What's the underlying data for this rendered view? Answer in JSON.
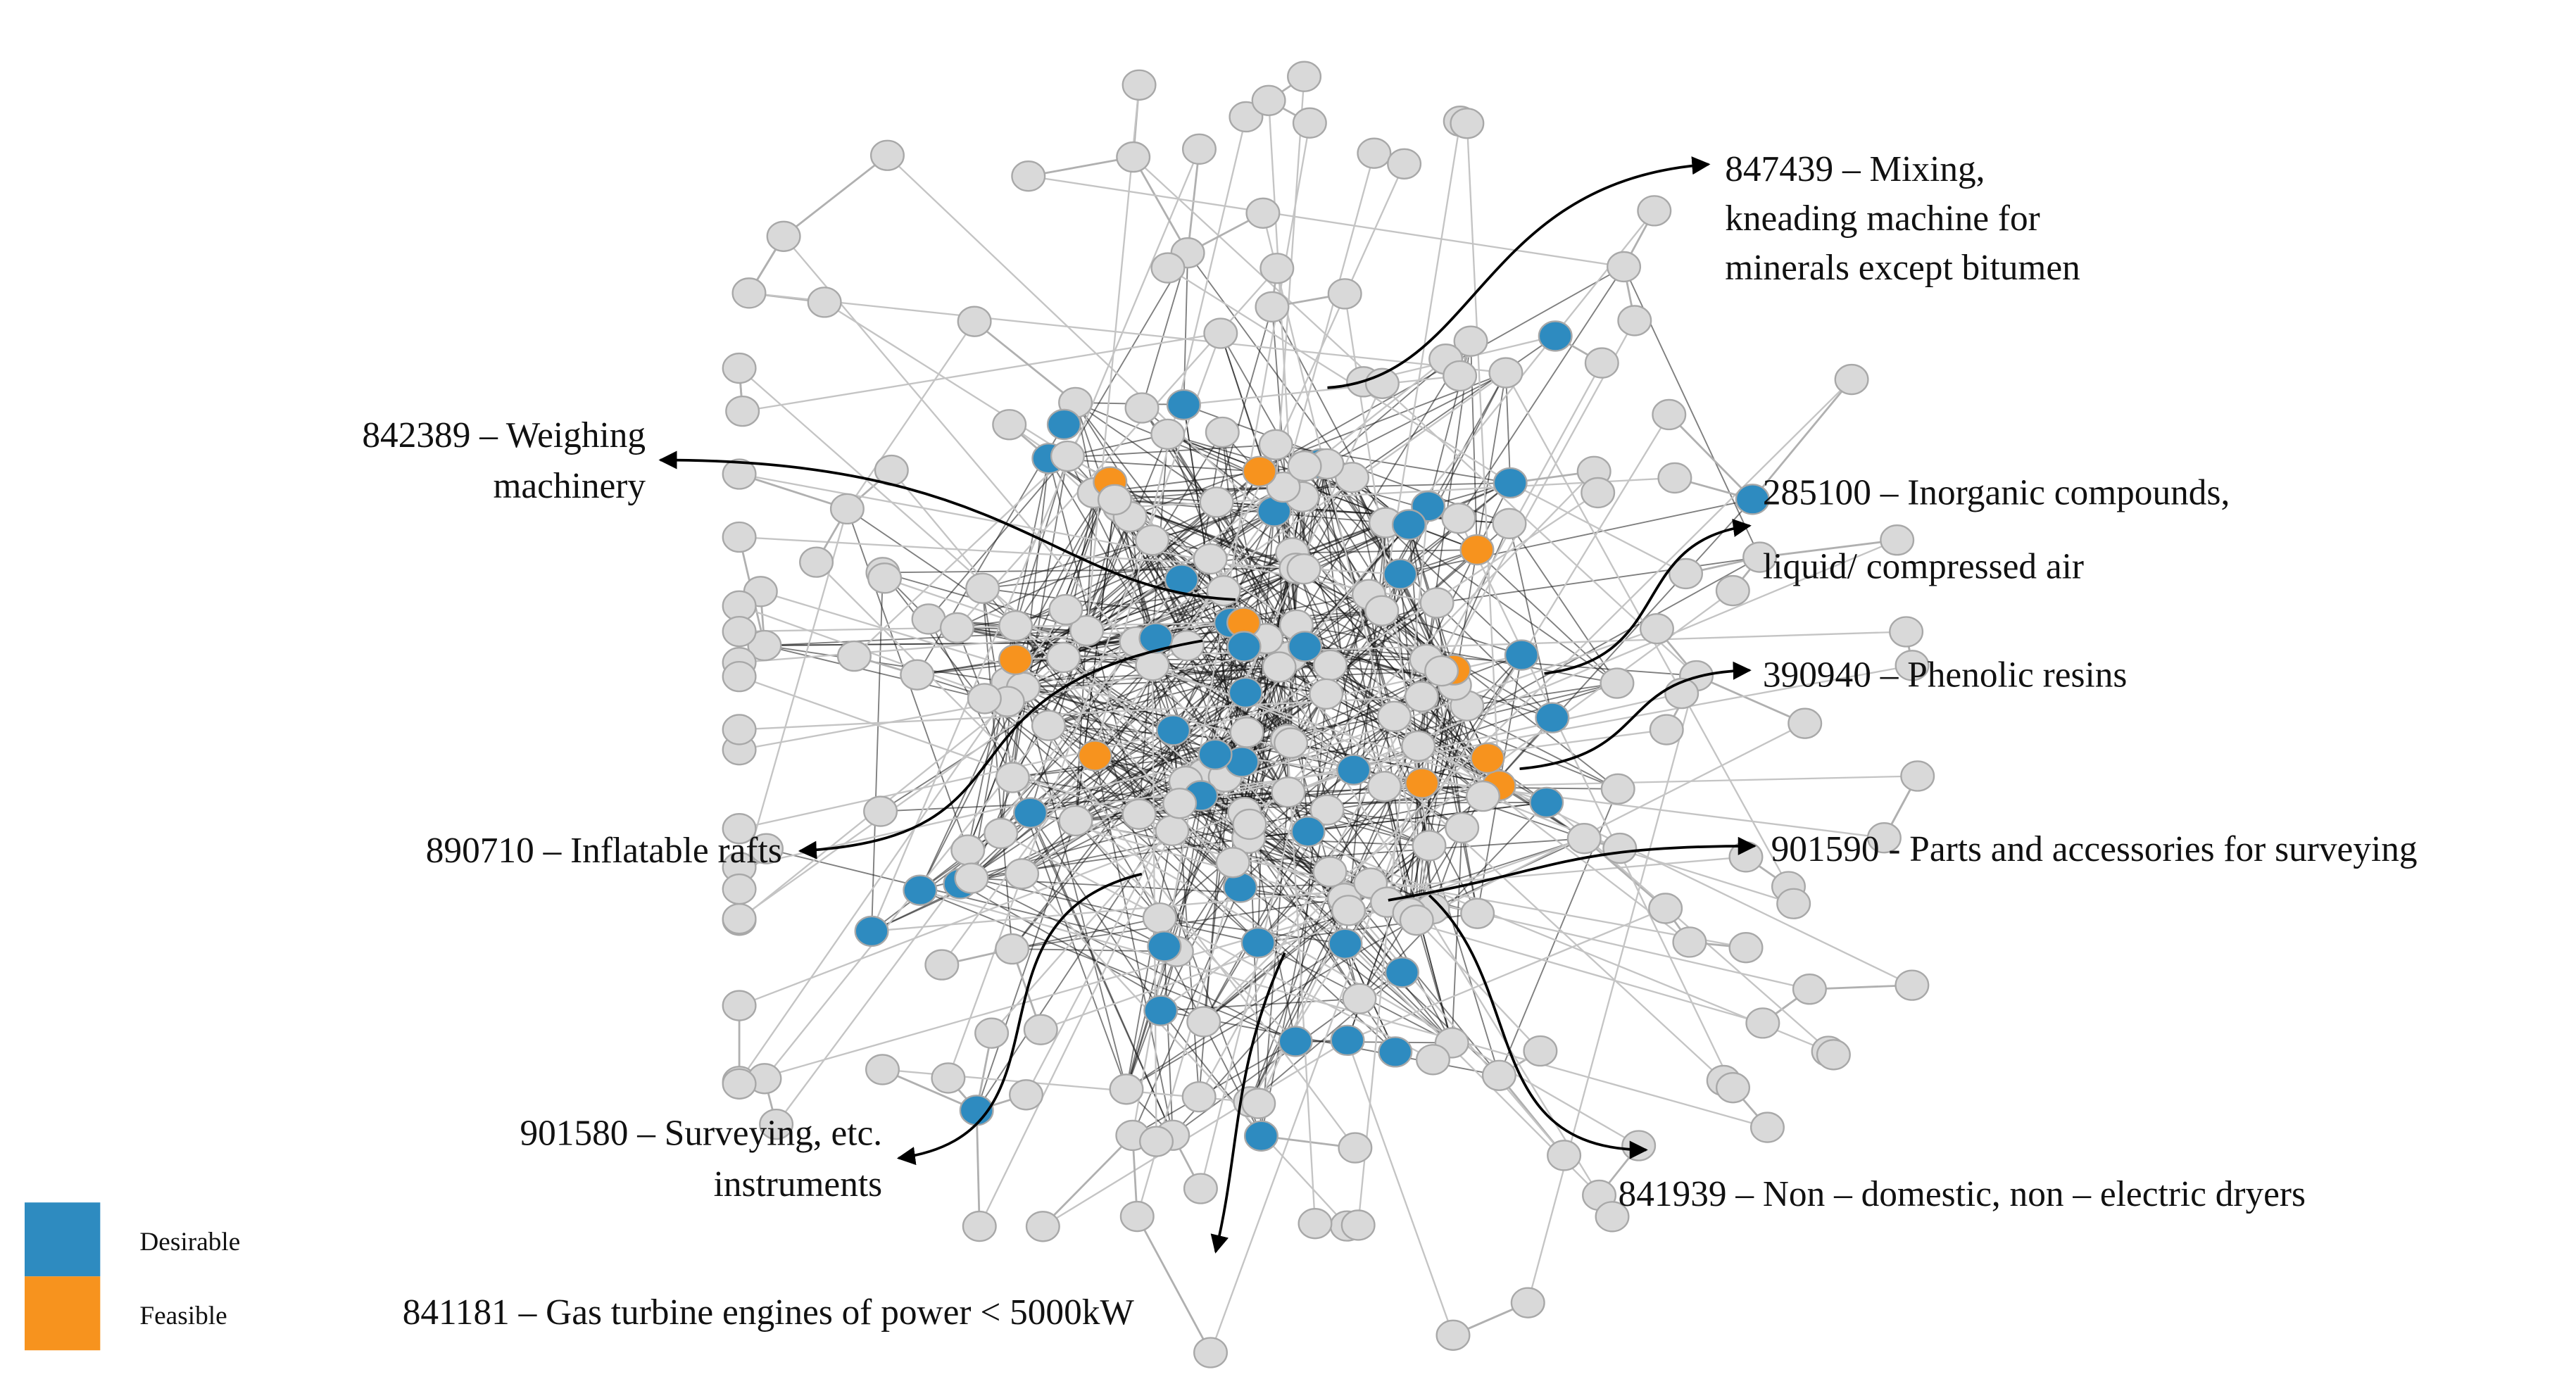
{
  "annotations": [
    {
      "lines": [
        "847439 – Mixing,",
        "kneading machine for",
        "minerals except bitumen"
      ]
    },
    {
      "lines": [
        "842389 – Weighing",
        "machinery"
      ]
    },
    {
      "lines": [
        "285100 – Inorganic compounds,",
        "liquid/ compressed air"
      ]
    },
    {
      "lines": [
        "390940 – Phenolic resins"
      ]
    },
    {
      "lines": [
        "890710 – Inflatable rafts"
      ]
    },
    {
      "lines": [
        "901590 - Parts and accessories for surveying"
      ]
    },
    {
      "lines": [
        "901580 – Surveying, etc.",
        "instruments"
      ]
    },
    {
      "lines": [
        "841939 – Non – domestic, non – electric dryers"
      ]
    },
    {
      "lines": [
        "841181 – Gas turbine engines of power < 5000kW"
      ]
    }
  ],
  "legend": [
    {
      "label": "Desirable"
    },
    {
      "label": "Feasible"
    }
  ]
}
